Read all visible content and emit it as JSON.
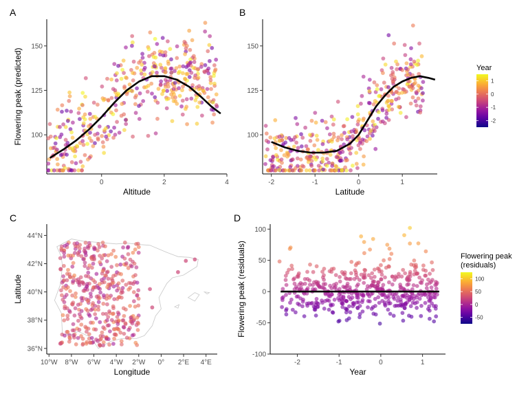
{
  "colors": {
    "plasma": [
      "#0d0887",
      "#5c01a6",
      "#9c179e",
      "#cc4778",
      "#ed7953",
      "#fdb42f",
      "#f0f921"
    ],
    "curve": "#000000",
    "map_outline": "#c8c8c8"
  },
  "chart_data": [
    {
      "panel": "A",
      "type": "scatter",
      "xlabel": "Altitude",
      "ylabel": "Flowering peak (predicted)",
      "xlim": [
        -1.75,
        4.0
      ],
      "ylim": [
        78,
        165
      ],
      "xticks": [
        0,
        2,
        4
      ],
      "yticks": [
        100,
        125,
        150
      ],
      "xtick_labels": [
        "0",
        "2",
        "4"
      ],
      "ytick_labels": [
        "100",
        "125",
        "150"
      ],
      "color_by": "Year",
      "n_points": 450,
      "point_center": [
        [
          -1.7,
          85
        ],
        [
          -1.0,
          95
        ],
        [
          -0.5,
          100
        ],
        [
          0,
          110
        ],
        [
          0.5,
          120
        ],
        [
          1.0,
          128
        ],
        [
          1.5,
          133
        ],
        [
          2.0,
          133
        ],
        [
          2.5,
          130
        ]
      ],
      "point_spread": 12,
      "fit_curve": {
        "x": [
          -1.65,
          -1.2,
          -0.8,
          -0.4,
          0.0,
          0.4,
          0.8,
          1.2,
          1.6,
          2.0,
          2.4,
          2.8,
          3.2,
          3.5,
          3.8
        ],
        "y": [
          87,
          92,
          97,
          103,
          110,
          118,
          125,
          130,
          133,
          133,
          131,
          127,
          121,
          116,
          112
        ]
      }
    },
    {
      "panel": "B",
      "type": "scatter",
      "xlabel": "Latitude",
      "ylabel": "",
      "xlim": [
        -2.2,
        1.8
      ],
      "ylim": [
        78,
        165
      ],
      "xticks": [
        -2,
        -1,
        0,
        1
      ],
      "yticks": [
        100,
        125,
        150
      ],
      "xtick_labels": [
        "-2",
        "-1",
        "0",
        "1"
      ],
      "ytick_labels": [
        "100",
        "125",
        "150"
      ],
      "color_by": "Year",
      "n_points": 450,
      "point_center": [
        [
          -2.0,
          88
        ],
        [
          -1.5,
          88
        ],
        [
          -1.0,
          89
        ],
        [
          -0.5,
          89
        ],
        [
          0.0,
          100
        ],
        [
          0.3,
          110
        ],
        [
          0.6,
          120
        ],
        [
          1.0,
          128
        ],
        [
          1.5,
          130
        ]
      ],
      "point_spread": 10,
      "fit_curve": {
        "x": [
          -2.0,
          -1.7,
          -1.4,
          -1.1,
          -0.8,
          -0.5,
          -0.2,
          0.0,
          0.2,
          0.4,
          0.6,
          0.8,
          1.0,
          1.2,
          1.4,
          1.6,
          1.75
        ],
        "y": [
          96,
          93,
          91,
          90,
          90,
          91,
          95,
          100,
          108,
          116,
          122,
          127,
          130,
          132,
          133,
          132,
          131
        ]
      }
    },
    {
      "panel": "C",
      "type": "map",
      "xlabel": "Longitude",
      "ylabel": "Latitude",
      "xlim": [
        -10.2,
        5.0
      ],
      "ylim": [
        35.6,
        44.8
      ],
      "xticks": [
        -10,
        -8,
        -6,
        -4,
        -2,
        0,
        2,
        4
      ],
      "yticks": [
        36,
        38,
        40,
        42,
        44
      ],
      "xtick_labels": [
        "10°W",
        "8°W",
        "6°W",
        "4°W",
        "2°W",
        "0°",
        "2°E",
        "4°E"
      ],
      "ytick_labels": [
        "36°N",
        "38°N",
        "40°N",
        "42°N",
        "44°N"
      ],
      "color_by": "Flowering peak (residuals)",
      "n_points": 420,
      "point_region": {
        "lon": [
          -9.0,
          -2.0
        ],
        "lat": [
          36.2,
          43.5
        ]
      },
      "outline": {
        "lon": [
          -9.3,
          -8.0,
          -7.0,
          -5.5,
          -4.0,
          -3.0,
          -1.8,
          -1.0,
          0.5,
          1.5,
          2.5,
          3.3,
          3.2,
          2.0,
          1.0,
          0.5,
          -0.2,
          0.0,
          -0.5,
          -0.8,
          -1.5,
          -2.2,
          -3.5,
          -4.5,
          -5.6,
          -6.3,
          -7.4,
          -8.0,
          -8.8,
          -8.9,
          -9.5,
          -9.0,
          -8.8,
          -8.9,
          -9.3
        ],
        "lat": [
          43.2,
          43.75,
          43.6,
          43.5,
          43.4,
          43.45,
          43.35,
          43.3,
          42.8,
          42.5,
          42.45,
          42.3,
          41.8,
          41.2,
          41.0,
          40.6,
          39.6,
          38.8,
          38.3,
          37.6,
          36.9,
          36.7,
          36.7,
          36.5,
          36.0,
          36.8,
          37.2,
          37.0,
          37.0,
          38.5,
          39.4,
          40.5,
          41.8,
          42.5,
          43.2
        ]
      },
      "islands": [
        {
          "lon": [
            2.4,
            3.0,
            3.4,
            3.0,
            2.4
          ],
          "lat": [
            39.6,
            39.95,
            39.8,
            39.35,
            39.6
          ]
        },
        {
          "lon": [
            1.2,
            1.6,
            1.5,
            1.2
          ],
          "lat": [
            38.95,
            39.1,
            38.85,
            38.95
          ]
        },
        {
          "lon": [
            3.85,
            4.3,
            4.1,
            3.85
          ],
          "lat": [
            40.0,
            39.95,
            39.85,
            40.0
          ]
        }
      ]
    },
    {
      "panel": "D",
      "type": "scatter",
      "xlabel": "Year",
      "ylabel": "Flowering peak (residuals)",
      "xlim": [
        -2.65,
        1.55
      ],
      "ylim": [
        -100,
        108
      ],
      "xticks": [
        -2,
        -1,
        0,
        1
      ],
      "yticks": [
        -100,
        -50,
        0,
        50,
        100
      ],
      "xtick_labels": [
        "-2",
        "-1",
        "0",
        "1"
      ],
      "ytick_labels": [
        "-100",
        "-50",
        "0",
        "50",
        "100"
      ],
      "color_by": "Flowering peak (residuals)",
      "n_points": 500,
      "point_spread": 22,
      "fit_curve": {
        "x": [
          -2.4,
          1.4
        ],
        "y": [
          0,
          0
        ]
      }
    }
  ],
  "panel_labels": {
    "a": "A",
    "b": "B",
    "c": "C",
    "d": "D"
  },
  "legends": {
    "year": {
      "title": "Year",
      "ticks": [
        "1",
        "0",
        "-1",
        "-2"
      ],
      "tick_values": [
        1,
        0,
        -1,
        -2
      ],
      "range": [
        -2.5,
        1.5
      ]
    },
    "residuals": {
      "title_line1": "Flowering peak",
      "title_line2": "(residuals)",
      "ticks": [
        "100",
        "50",
        "0",
        "-50"
      ],
      "tick_values": [
        100,
        50,
        0,
        -50
      ],
      "range": [
        -75,
        125
      ]
    }
  }
}
